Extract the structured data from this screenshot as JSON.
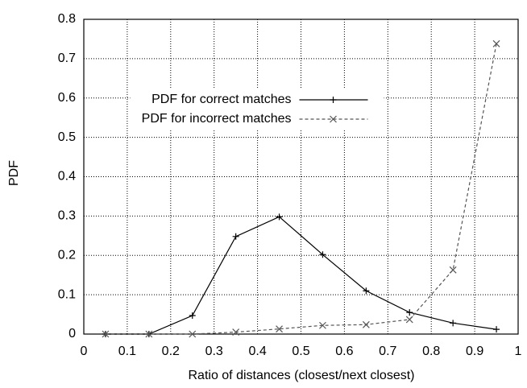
{
  "chart_data": {
    "type": "line",
    "x_label": "Ratio of distances (closest/next closest)",
    "y_label": "PDF",
    "x": [
      0.05,
      0.15,
      0.25,
      0.35,
      0.45,
      0.55,
      0.65,
      0.75,
      0.85,
      0.95
    ],
    "series": [
      {
        "name": "PDF for correct matches",
        "color": "#000000",
        "line_style": "solid",
        "marker": "plus",
        "values": [
          0,
          0,
          0.047,
          0.248,
          0.298,
          0.202,
          0.11,
          0.055,
          0.028,
          0.012
        ]
      },
      {
        "name": "PDF for incorrect matches",
        "color": "#555555",
        "line_style": "dashed",
        "marker": "cross",
        "values": [
          0,
          0,
          0,
          0.005,
          0.013,
          0.022,
          0.024,
          0.037,
          0.163,
          0.738
        ]
      }
    ],
    "xlim": [
      0,
      1
    ],
    "xticks": [
      0,
      0.1,
      0.2,
      0.3,
      0.4,
      0.5,
      0.6,
      0.7,
      0.8,
      0.9,
      1
    ],
    "ylim": [
      0,
      0.8
    ],
    "yticks": [
      0,
      0.1,
      0.2,
      0.3,
      0.4,
      0.5,
      0.6,
      0.7,
      0.8
    ],
    "grid": true,
    "legend_position": "top-center"
  }
}
